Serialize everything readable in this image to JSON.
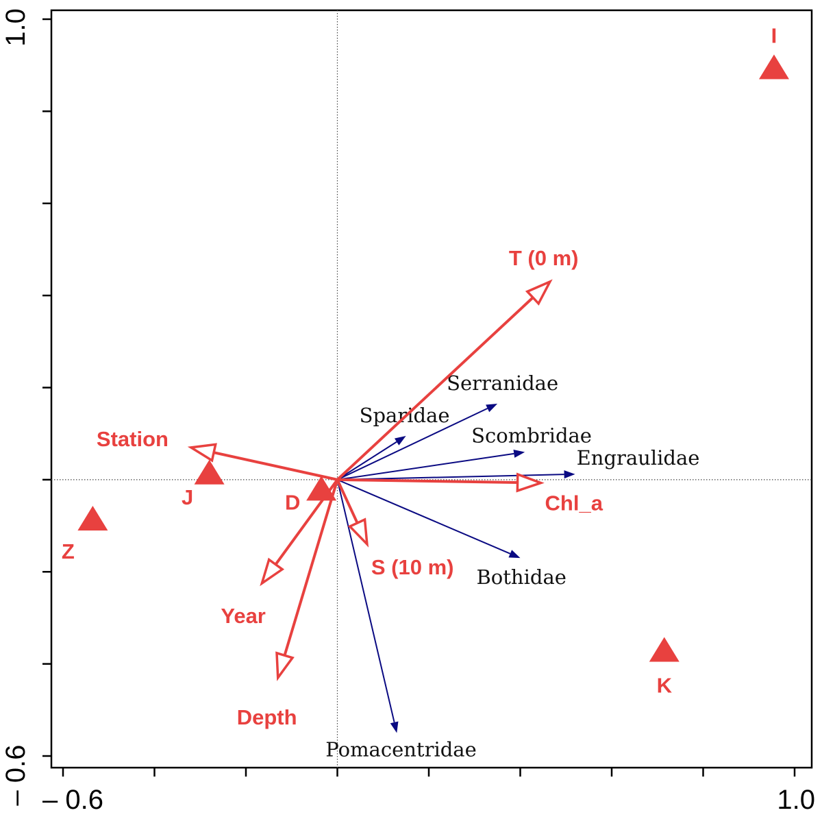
{
  "chart_data": {
    "type": "scatter",
    "subtype": "ordination-biplot",
    "title": "",
    "xlabel": "",
    "ylabel": "",
    "xlim": [
      -0.6,
      1.0
    ],
    "ylim": [
      -0.6,
      1.0
    ],
    "x_ticks": [
      -0.6,
      -0.4,
      -0.2,
      0.0,
      0.2,
      0.4,
      0.6,
      0.8,
      1.0
    ],
    "y_ticks": [
      -0.6,
      -0.4,
      -0.2,
      0.0,
      0.2,
      0.4,
      0.6,
      0.8,
      1.0
    ],
    "x_tick_labels": [
      {
        "value": -0.6,
        "label": "– 0.6"
      },
      {
        "value": 1.0,
        "label": "1.0"
      }
    ],
    "y_tick_labels": [
      {
        "value": 1.0,
        "label": "1.0"
      },
      {
        "value": -0.6,
        "label": "– 0.6"
      }
    ],
    "grid": false,
    "reference_lines": {
      "x": 0.0,
      "y": 0.0,
      "style": "dotted"
    },
    "species_arrows": [
      {
        "name": "Sparidae",
        "x": 0.15,
        "y": 0.095
      },
      {
        "name": "Serranidae",
        "x": 0.35,
        "y": 0.165
      },
      {
        "name": "Scombridae",
        "x": 0.41,
        "y": 0.06
      },
      {
        "name": "Engraulidae",
        "x": 0.52,
        "y": 0.012
      },
      {
        "name": "Bothidae",
        "x": 0.4,
        "y": -0.17
      },
      {
        "name": "Pomacentridae",
        "x": 0.13,
        "y": -0.55
      }
    ],
    "environment_arrows": [
      {
        "name": "T (0 m)",
        "x": 0.465,
        "y": 0.43
      },
      {
        "name": "Station",
        "x": -0.32,
        "y": 0.07
      },
      {
        "name": "Chl_a",
        "x": 0.445,
        "y": -0.007
      },
      {
        "name": "S (10 m)",
        "x": 0.065,
        "y": -0.14
      },
      {
        "name": "Year",
        "x": -0.165,
        "y": -0.225
      },
      {
        "name": "Depth",
        "x": -0.13,
        "y": -0.43
      }
    ],
    "sites": [
      {
        "name": "I",
        "x": 0.955,
        "y": 0.895
      },
      {
        "name": "J",
        "x": -0.28,
        "y": 0.015
      },
      {
        "name": "D",
        "x": -0.035,
        "y": -0.02
      },
      {
        "name": "Z",
        "x": -0.535,
        "y": -0.085
      },
      {
        "name": "K",
        "x": 0.715,
        "y": -0.37
      }
    ],
    "colors": {
      "environment": "#e8413f",
      "species": "#0a0a82",
      "axes": "#000000",
      "reference": "#444444"
    }
  }
}
